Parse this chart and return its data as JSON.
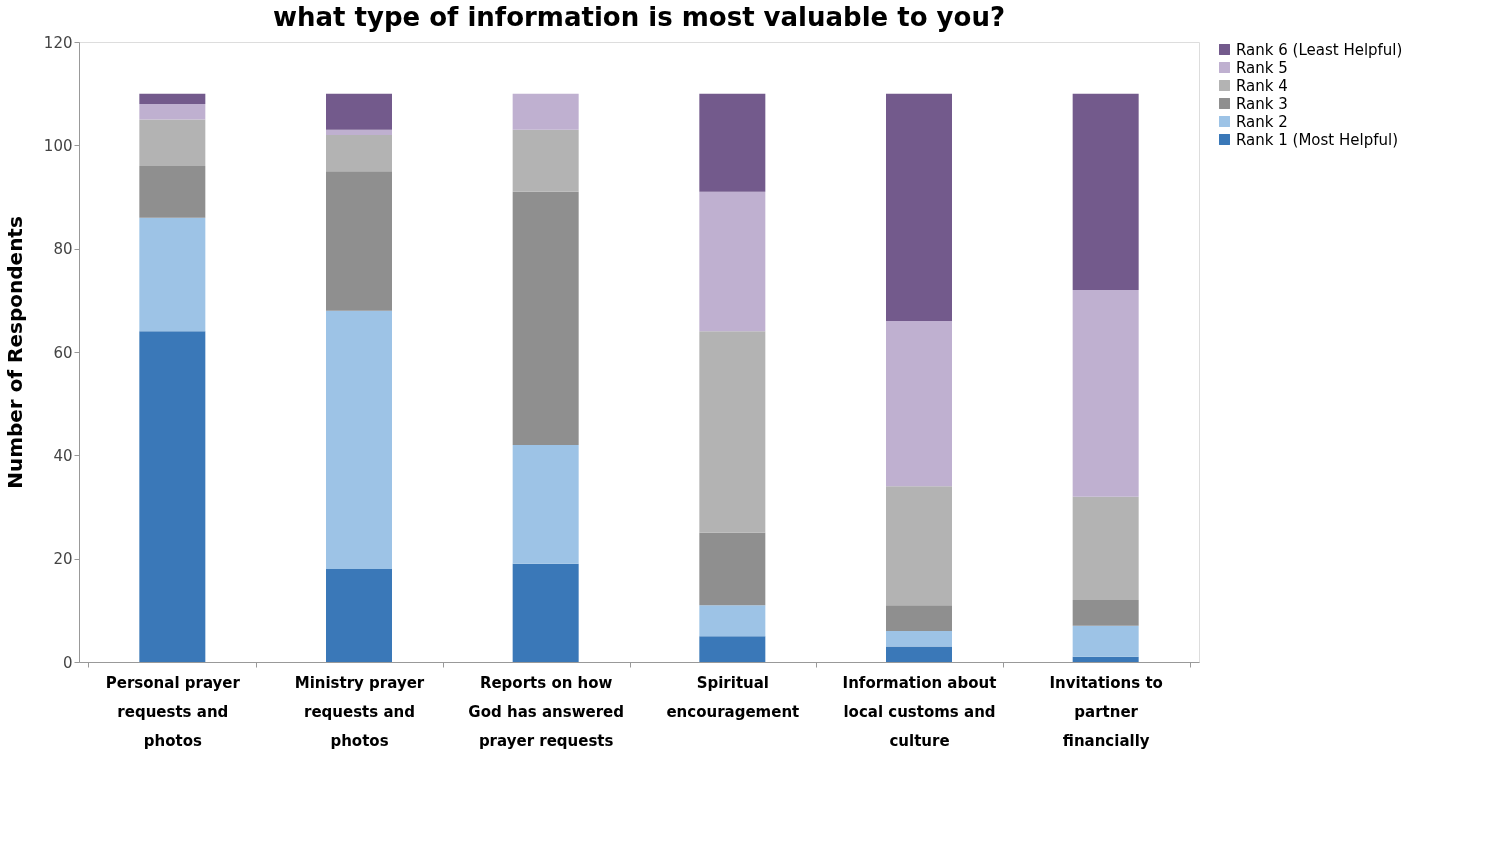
{
  "chart_data": {
    "type": "bar",
    "stacked": true,
    "title": "what type of information is most valuable to you?",
    "ylabel": "Number of Respondents",
    "categories": [
      "Personal prayer requests and photos",
      "Ministry prayer requests and photos",
      "Reports on how God has answered prayer requests",
      "Spiritual encouragement",
      "Information about local customs and culture",
      "Invitations to partner financially"
    ],
    "series": [
      {
        "name": "Rank 1 (Most Helpful)",
        "color": "#3a78b8",
        "values": [
          64,
          18,
          19,
          5,
          3,
          1
        ]
      },
      {
        "name": "Rank 2",
        "color": "#9dc3e6",
        "values": [
          22,
          50,
          23,
          6,
          3,
          6
        ]
      },
      {
        "name": "Rank 3",
        "color": "#8f8f8f",
        "values": [
          10,
          27,
          49,
          14,
          5,
          5
        ]
      },
      {
        "name": "Rank 4",
        "color": "#b3b3b3",
        "values": [
          9,
          7,
          12,
          39,
          23,
          20
        ]
      },
      {
        "name": "Rank 5",
        "color": "#bfb0d0",
        "values": [
          3,
          1,
          7,
          27,
          32,
          40
        ]
      },
      {
        "name": "Rank 6 (Least Helpful)",
        "color": "#735a8c",
        "values": [
          2,
          7,
          0,
          19,
          44,
          38
        ]
      }
    ],
    "ylim": [
      0,
      120
    ],
    "yticks": [
      0,
      20,
      40,
      60,
      80,
      100,
      120
    ],
    "grid": false,
    "legend": "right"
  }
}
